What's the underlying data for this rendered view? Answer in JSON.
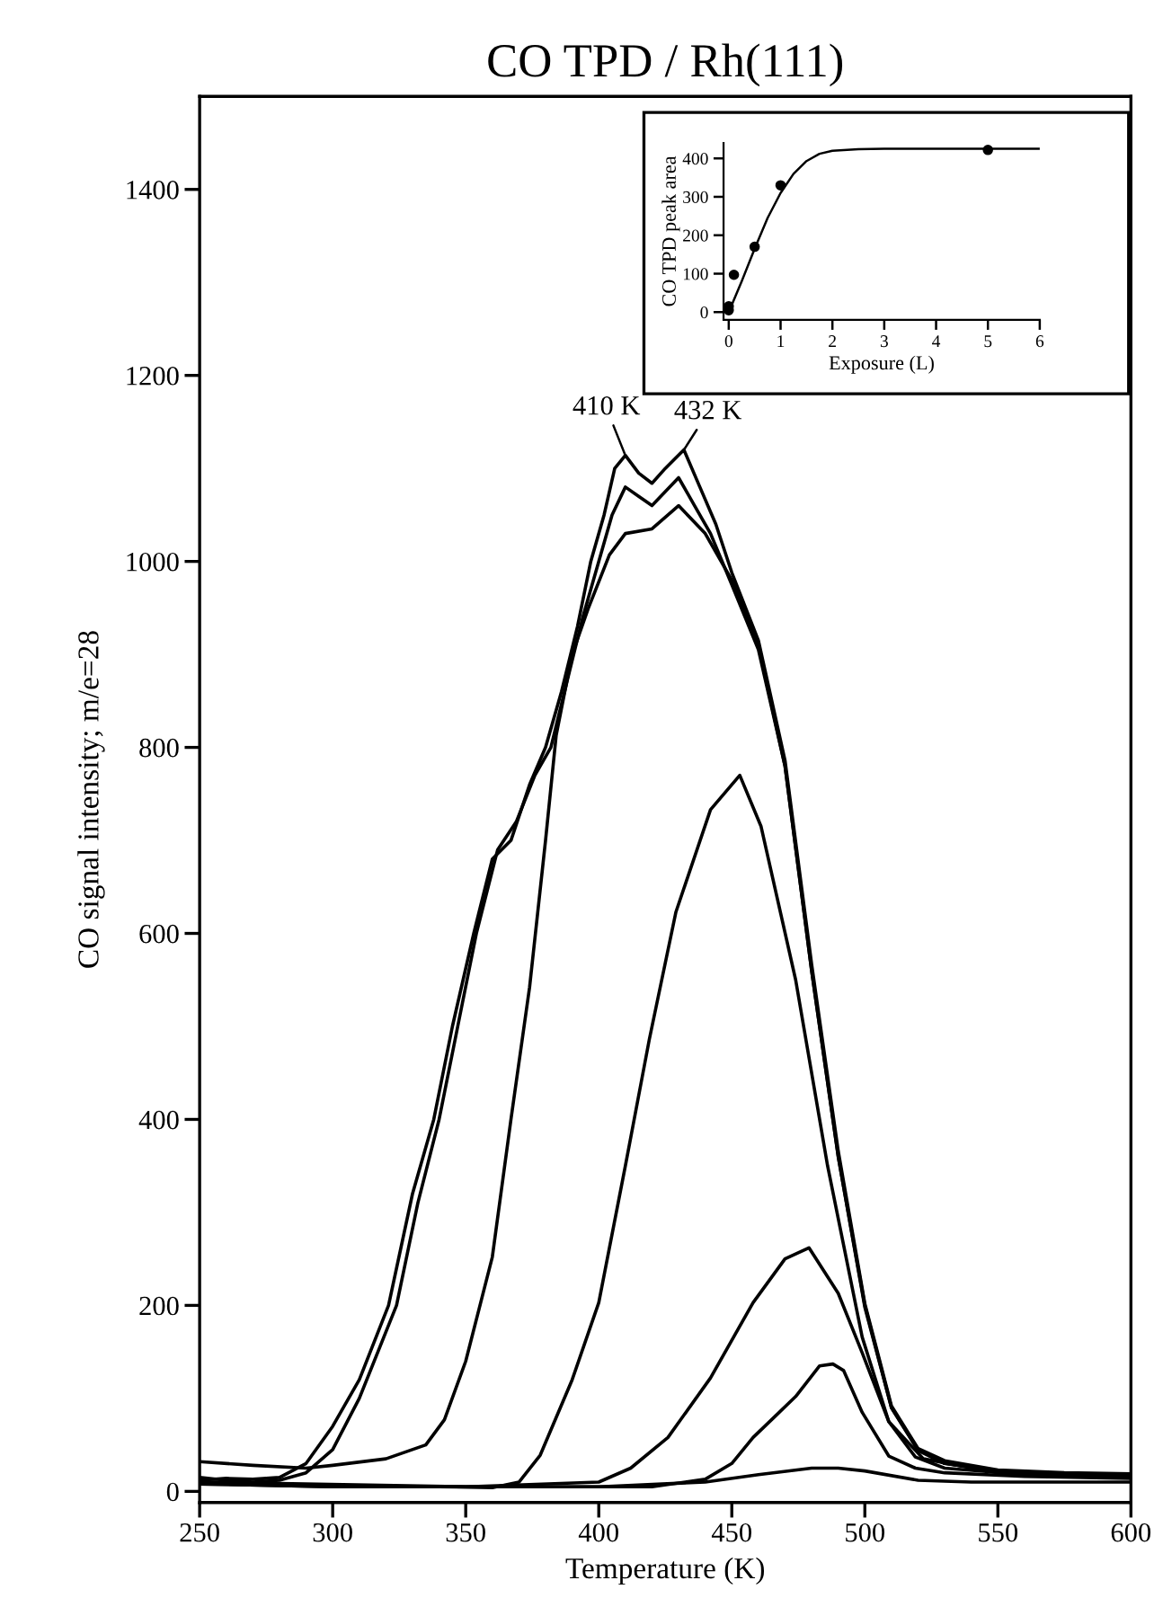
{
  "chart_data": [
    {
      "type": "line",
      "title": "CO TPD / Rh(111)",
      "xlabel": "Temperature (K)",
      "ylabel": "CO signal intensity; m/e=28",
      "xlim": [
        250,
        600
      ],
      "ylim": [
        -12,
        1500
      ],
      "xticks": [
        250,
        300,
        350,
        400,
        450,
        500,
        550,
        600
      ],
      "yticks": [
        0,
        200,
        400,
        600,
        800,
        1000,
        1200,
        1400
      ],
      "line_style": "solid",
      "annotations": [
        {
          "text": "410 K",
          "x": 410,
          "y": 1114
        },
        {
          "text": "432 K",
          "x": 432,
          "y": 1120
        }
      ],
      "series": [
        {
          "color": "#000000",
          "x": [
            250,
            260,
            270,
            280,
            290,
            300,
            310,
            321,
            330,
            338,
            345,
            353,
            360,
            367,
            374,
            380,
            386,
            392,
            397,
            402,
            406,
            410,
            415,
            420,
            425,
            432,
            438,
            444,
            450,
            460,
            470,
            480,
            490,
            500,
            510,
            520,
            530,
            550,
            575,
            600
          ],
          "values": [
            12,
            14,
            13,
            15,
            30,
            70,
            120,
            200,
            320,
            400,
            500,
            600,
            680,
            700,
            760,
            800,
            860,
            930,
            1000,
            1050,
            1100,
            1114,
            1095,
            1084,
            1100,
            1120,
            1080,
            1040,
            988,
            915,
            786,
            567,
            366,
            202,
            92,
            46,
            33,
            23,
            20,
            19
          ]
        },
        {
          "color": "#000000",
          "x": [
            250,
            260,
            270,
            280,
            290,
            300,
            310,
            324,
            332,
            340,
            347,
            354,
            362,
            369,
            376,
            382,
            388,
            394,
            400,
            405,
            410,
            415,
            420,
            425,
            430,
            436,
            442,
            450,
            460,
            470,
            480,
            490,
            500,
            510,
            520,
            530,
            550,
            575,
            600
          ],
          "values": [
            15,
            12,
            10,
            12,
            20,
            45,
            100,
            200,
            310,
            400,
            500,
            600,
            690,
            720,
            770,
            800,
            870,
            940,
            1000,
            1050,
            1080,
            1070,
            1060,
            1075,
            1090,
            1060,
            1030,
            975,
            905,
            780,
            560,
            360,
            198,
            90,
            44,
            30,
            22,
            18,
            15
          ]
        },
        {
          "color": "#000000",
          "x": [
            250,
            270,
            290,
            300,
            320,
            335,
            342,
            350,
            360,
            367,
            374,
            380,
            384,
            390,
            396,
            404,
            410,
            420,
            430,
            440,
            450,
            460,
            470,
            480,
            490,
            500,
            510,
            520,
            530,
            550,
            575,
            600
          ],
          "values": [
            32,
            28,
            25,
            28,
            35,
            50,
            77,
            140,
            252,
            400,
            542,
            700,
            813,
            900,
            949,
            1007,
            1030,
            1035,
            1060,
            1030,
            980,
            910,
            780,
            560,
            360,
            200,
            90,
            45,
            30,
            22,
            18,
            16
          ]
        },
        {
          "color": "#000000",
          "x": [
            250,
            300,
            340,
            360,
            370,
            378,
            390,
            400,
            410,
            419,
            429,
            442,
            453,
            461,
            474,
            486,
            499,
            509,
            522,
            550,
            600
          ],
          "values": [
            10,
            6,
            5,
            4,
            10,
            39,
            120,
            203,
            350,
            486,
            623,
            733,
            770,
            715,
            550,
            350,
            166,
            75,
            35,
            20,
            15
          ]
        },
        {
          "color": "#000000",
          "x": [
            250,
            300,
            350,
            400,
            412,
            426,
            442,
            458,
            470,
            479,
            490,
            499,
            509,
            519,
            530,
            560,
            600
          ],
          "values": [
            8,
            5,
            5,
            10,
            25,
            58,
            122,
            203,
            250,
            262,
            213,
            149,
            75,
            37,
            25,
            18,
            15
          ]
        },
        {
          "color": "#000000",
          "x": [
            250,
            350,
            420,
            440,
            450,
            458,
            466,
            474,
            483,
            488,
            492,
            499,
            509,
            519,
            530,
            560,
            600
          ],
          "values": [
            10,
            5,
            5,
            13,
            30,
            58,
            80,
            102,
            135,
            137,
            130,
            85,
            38,
            25,
            20,
            16,
            14
          ]
        },
        {
          "color": "#000000",
          "x": [
            250,
            300,
            400,
            440,
            460,
            480,
            490,
            500,
            520,
            540,
            600
          ],
          "values": [
            8,
            5,
            5,
            10,
            18,
            25,
            25,
            22,
            12,
            10,
            10
          ]
        }
      ]
    },
    {
      "type": "line",
      "xlabel": "Exposure (L)",
      "ylabel": "CO TPD peak area",
      "xlim": [
        -0.1,
        6
      ],
      "ylim": [
        -20,
        440
      ],
      "xticks": [
        0,
        1,
        2,
        3,
        4,
        5,
        6
      ],
      "yticks": [
        0,
        100,
        200,
        300,
        400
      ],
      "series": [
        {
          "type": "line",
          "color": "#000000",
          "x": [
            0,
            0.25,
            0.5,
            0.75,
            1,
            1.25,
            1.5,
            1.75,
            2,
            2.5,
            3,
            4,
            5,
            6
          ],
          "values": [
            0,
            80,
            165,
            245,
            310,
            360,
            393,
            412,
            420,
            424,
            425,
            425,
            425,
            425
          ]
        },
        {
          "type": "scatter",
          "marker": "circle",
          "color": "#000000",
          "x": [
            0,
            0,
            0.1,
            0.5,
            1,
            5
          ],
          "values": [
            5,
            15,
            97,
            170,
            330,
            422
          ]
        }
      ]
    }
  ]
}
